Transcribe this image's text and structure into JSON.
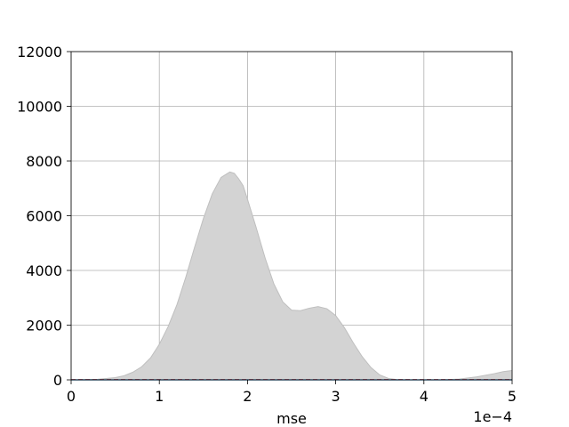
{
  "chart_data": {
    "type": "area",
    "title": "",
    "xlabel": "mse",
    "ylabel": "",
    "x_offset_text": "1e−4",
    "xlim": [
      0,
      5
    ],
    "ylim": [
      0,
      12000
    ],
    "x_ticks": [
      0,
      1,
      2,
      3,
      4,
      5
    ],
    "x_tick_labels": [
      "0",
      "1",
      "2",
      "3",
      "4",
      "5"
    ],
    "y_ticks": [
      0,
      2000,
      4000,
      6000,
      8000,
      10000,
      12000
    ],
    "y_tick_labels": [
      "0",
      "2000",
      "4000",
      "6000",
      "8000",
      "10000",
      "12000"
    ],
    "grid": true,
    "legend": "none",
    "series": [
      {
        "fill_color": "#d3d3d3",
        "line_color": "#bfbfbf",
        "x": [
          0,
          0.3,
          0.5,
          0.6,
          0.7,
          0.8,
          0.9,
          1.0,
          1.1,
          1.2,
          1.3,
          1.4,
          1.5,
          1.6,
          1.7,
          1.8,
          1.85,
          1.9,
          1.95,
          2.0,
          2.1,
          2.2,
          2.3,
          2.4,
          2.5,
          2.6,
          2.7,
          2.8,
          2.9,
          3.0,
          3.1,
          3.2,
          3.3,
          3.4,
          3.5,
          3.6,
          3.7,
          3.8,
          4.0,
          4.2,
          4.4,
          4.6,
          4.8,
          4.9,
          5.0
        ],
        "y": [
          0,
          20,
          80,
          150,
          280,
          480,
          800,
          1300,
          1950,
          2750,
          3750,
          4850,
          5900,
          6800,
          7400,
          7600,
          7550,
          7350,
          7100,
          6600,
          5550,
          4450,
          3500,
          2850,
          2550,
          2530,
          2620,
          2680,
          2600,
          2350,
          1900,
          1350,
          850,
          450,
          180,
          50,
          10,
          0,
          0,
          0,
          30,
          110,
          230,
          300,
          340
        ]
      },
      {
        "line_color": "#d62728",
        "line_style": "dashed",
        "x": [
          0,
          5
        ],
        "y": [
          10,
          10
        ]
      },
      {
        "line_color": "#1f77b4",
        "line_style": "solid",
        "x": [
          0,
          5
        ],
        "y": [
          0,
          0
        ]
      }
    ]
  }
}
